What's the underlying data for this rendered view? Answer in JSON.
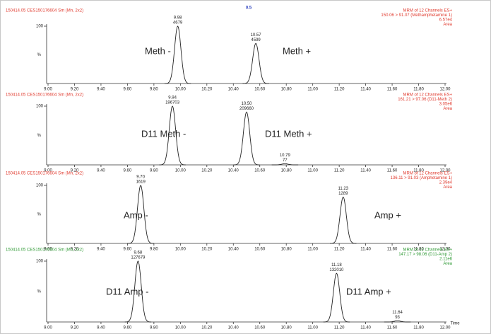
{
  "top_text": "0.5",
  "chart_data": [
    {
      "type": "chromatogram",
      "header": "150414.05 CES150176604 Sm (Mn, 2x2)",
      "header_color": "#e03a2e",
      "info": [
        "MRM of 12 Channels ES+",
        "150.06 > 91.07 (Methamphetamine 1)",
        "6.57e4",
        "Area"
      ],
      "x": [
        9.98,
        10.57
      ],
      "x_labels": [
        "9.98",
        "10.57"
      ],
      "values": [
        100,
        70
      ],
      "peak_areas": [
        4679,
        4599
      ],
      "color": "#222222",
      "annotations": [
        "Meth -",
        "Meth +"
      ],
      "ylabel": "%",
      "xlim": [
        9,
        12
      ],
      "ylim": [
        0,
        100
      ],
      "yticks": [
        100
      ],
      "xticks": [
        {
          "value": 9,
          "label": "9.00"
        },
        {
          "value": 9.2,
          "label": "9.20"
        },
        {
          "value": 9.4,
          "label": "9.40"
        },
        {
          "value": 9.6,
          "label": "9.60"
        },
        {
          "value": 9.8,
          "label": "9.80"
        },
        {
          "value": 10,
          "label": "10.00"
        },
        {
          "value": 10.2,
          "label": "10.20"
        },
        {
          "value": 10.4,
          "label": "10.40"
        },
        {
          "value": 10.6,
          "label": "10.60"
        },
        {
          "value": 10.8,
          "label": "10.80"
        },
        {
          "value": 11,
          "label": "11.00"
        },
        {
          "value": 11.2,
          "label": "11.20"
        },
        {
          "value": 11.4,
          "label": "11.40"
        },
        {
          "value": 11.6,
          "label": "11.60"
        },
        {
          "value": 11.8,
          "label": "11.80"
        },
        {
          "value": 12,
          "label": "12.00"
        }
      ]
    },
    {
      "type": "chromatogram",
      "header": "150414.05 CES150176604 Sm (Mn, 2x2)",
      "header_color": "#e03a2e",
      "info": [
        "MRM of 12 Channels ES+",
        "161.21 > 97.06 (D11-Meth 2)",
        "3.05e6",
        "Area"
      ],
      "x": [
        9.94,
        10.5,
        10.79
      ],
      "x_labels": [
        "9.94",
        "10.50",
        "10.79"
      ],
      "values": [
        100,
        90,
        2
      ],
      "peak_areas": [
        196703,
        209660,
        77
      ],
      "color": "#222222",
      "annotations": [
        "D11 Meth -",
        "D11 Meth +"
      ],
      "ylabel": "%",
      "xlim": [
        9,
        12
      ],
      "ylim": [
        0,
        100
      ],
      "yticks": [
        100
      ],
      "xticks": [
        {
          "value": 9,
          "label": "9.00"
        },
        {
          "value": 9.2,
          "label": "9.20"
        },
        {
          "value": 9.4,
          "label": "9.40"
        },
        {
          "value": 9.6,
          "label": "9.60"
        },
        {
          "value": 9.8,
          "label": "9.80"
        },
        {
          "value": 10,
          "label": "10.00"
        },
        {
          "value": 10.2,
          "label": "10.20"
        },
        {
          "value": 10.4,
          "label": "10.40"
        },
        {
          "value": 10.6,
          "label": "10.60"
        },
        {
          "value": 10.8,
          "label": "10.80"
        },
        {
          "value": 11,
          "label": "11.00"
        },
        {
          "value": 11.2,
          "label": "11.20"
        },
        {
          "value": 11.4,
          "label": "11.40"
        },
        {
          "value": 11.6,
          "label": "11.60"
        },
        {
          "value": 11.8,
          "label": "11.80"
        },
        {
          "value": 12,
          "label": "12.00"
        }
      ]
    },
    {
      "type": "chromatogram",
      "header": "150414.05 CES150176604 Sm (Mn, 2x2)",
      "header_color": "#e03a2e",
      "info": [
        "MRM of 12 Channels ES+",
        "136.11 > 91.03 (Amphetamine 1)",
        "2.39e4",
        "Area"
      ],
      "x": [
        9.7,
        11.23
      ],
      "x_labels": [
        "9.70",
        "11.23"
      ],
      "values": [
        100,
        80
      ],
      "peak_areas": [
        1619,
        1289
      ],
      "color": "#222222",
      "annotations": [
        "Amp -",
        "Amp +"
      ],
      "ylabel": "%",
      "xlim": [
        9,
        12
      ],
      "ylim": [
        0,
        100
      ],
      "yticks": [
        100
      ],
      "xticks": [
        {
          "value": 9,
          "label": "9.00"
        },
        {
          "value": 9.2,
          "label": "9.20"
        },
        {
          "value": 9.4,
          "label": "9.40"
        },
        {
          "value": 9.6,
          "label": "9.60"
        },
        {
          "value": 9.8,
          "label": "9.80"
        },
        {
          "value": 10,
          "label": "10.00"
        },
        {
          "value": 10.2,
          "label": "10.20"
        },
        {
          "value": 10.4,
          "label": "10.40"
        },
        {
          "value": 10.6,
          "label": "10.60"
        },
        {
          "value": 10.8,
          "label": "10.80"
        },
        {
          "value": 11,
          "label": "11.00"
        },
        {
          "value": 11.2,
          "label": "11.20"
        },
        {
          "value": 11.4,
          "label": "11.40"
        },
        {
          "value": 11.6,
          "label": "11.60"
        },
        {
          "value": 11.8,
          "label": "11.80"
        },
        {
          "value": 12,
          "label": "12.00"
        }
      ]
    },
    {
      "type": "chromatogram",
      "header": "150414.05 CES150176604 Sm (Mn, 2x2)",
      "header_color": "#2f9a35",
      "info": [
        "MRM of 12 Channels ES+",
        "147.17 > 98.06 (D11-Amp 2)",
        "2.11e6",
        "Area"
      ],
      "x": [
        9.68,
        11.18,
        11.64
      ],
      "x_labels": [
        "9.68",
        "11.18",
        "11.64"
      ],
      "values": [
        100,
        80,
        2
      ],
      "peak_areas": [
        127679,
        132010,
        93
      ],
      "color": "#222222",
      "annotations": [
        "D11 Amp -",
        "D11 Amp +"
      ],
      "ylabel": "%",
      "xlabel": "Time",
      "xlim": [
        9,
        12
      ],
      "ylim": [
        0,
        100
      ],
      "yticks": [
        100
      ],
      "xticks": [
        {
          "value": 9,
          "label": "9.00"
        },
        {
          "value": 9.2,
          "label": "9.20"
        },
        {
          "value": 9.4,
          "label": "9.40"
        },
        {
          "value": 9.6,
          "label": "9.60"
        },
        {
          "value": 9.8,
          "label": "9.80"
        },
        {
          "value": 10,
          "label": "10.00"
        },
        {
          "value": 10.2,
          "label": "10.20"
        },
        {
          "value": 10.4,
          "label": "10.40"
        },
        {
          "value": 10.6,
          "label": "10.60"
        },
        {
          "value": 10.8,
          "label": "10.80"
        },
        {
          "value": 11,
          "label": "11.00"
        },
        {
          "value": 11.2,
          "label": "11.20"
        },
        {
          "value": 11.4,
          "label": "11.40"
        },
        {
          "value": 11.6,
          "label": "11.60"
        },
        {
          "value": 11.8,
          "label": "11.80"
        },
        {
          "value": 12,
          "label": "12.00"
        }
      ]
    }
  ]
}
